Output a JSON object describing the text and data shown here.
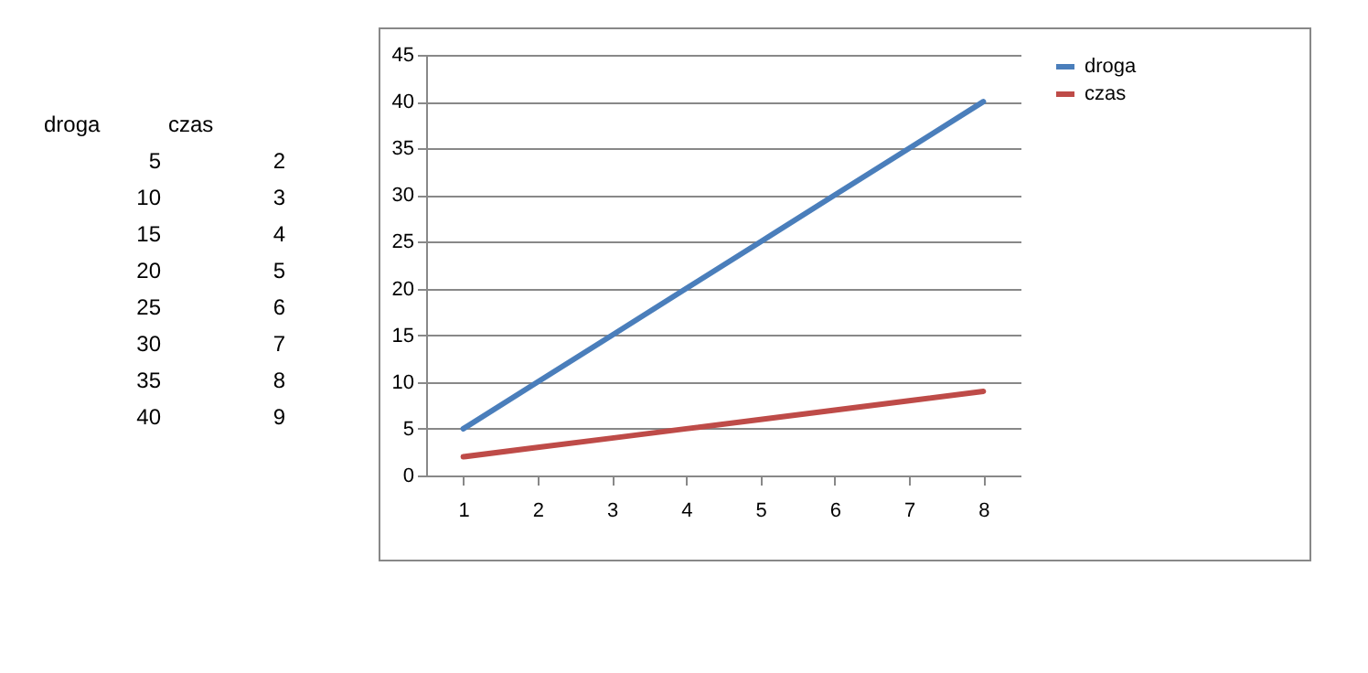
{
  "chart_data": {
    "type": "line",
    "categories": [
      "1",
      "2",
      "3",
      "4",
      "5",
      "6",
      "7",
      "8"
    ],
    "series": [
      {
        "name": "droga",
        "color": "#4a7ebb",
        "values": [
          5,
          10,
          15,
          20,
          25,
          30,
          35,
          40
        ]
      },
      {
        "name": "czas",
        "color": "#be4b48",
        "values": [
          2,
          3,
          4,
          5,
          6,
          7,
          8,
          9
        ]
      }
    ],
    "annotations": [
      "5",
      "2",
      "10",
      "3",
      "15",
      "4",
      "20",
      "5",
      "25",
      "6",
      "30",
      "7",
      "35",
      "8",
      "40",
      "9"
    ],
    "ylim": [
      0,
      45
    ],
    "yticks": [
      0,
      5,
      10,
      15,
      20,
      25,
      30,
      35,
      40,
      45
    ],
    "grid": "y",
    "legend": "right",
    "marker": "none",
    "line_style": "solid"
  }
}
